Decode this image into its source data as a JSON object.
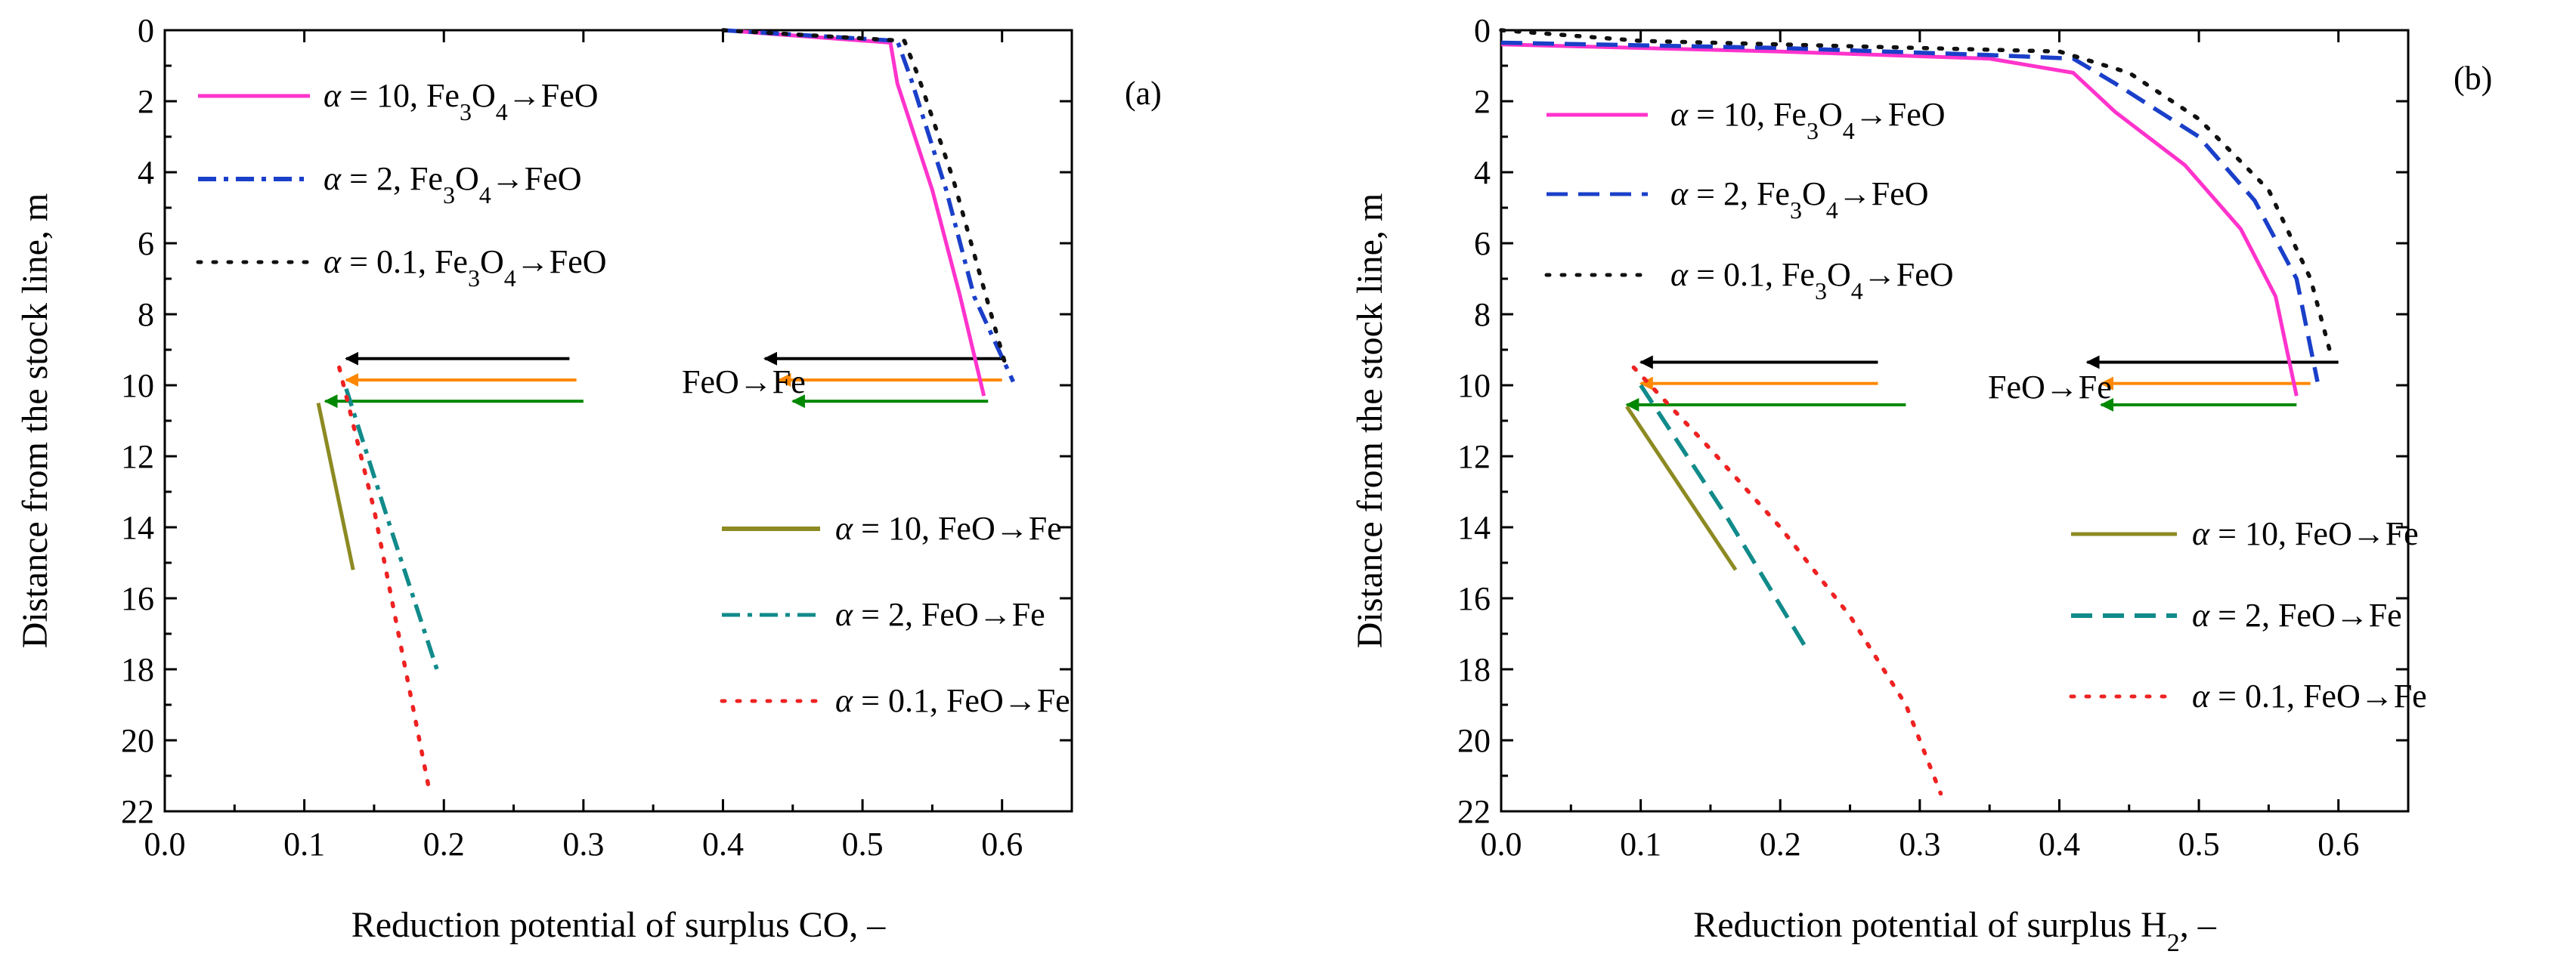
{
  "chart_data": [
    {
      "type": "line",
      "panel_label": "(a)",
      "xlabel": "Reduction potential of surplus CO, –",
      "ylabel": "Distance from the stock line, m",
      "xlim": [
        0.0,
        0.65
      ],
      "ylim": [
        22,
        0
      ],
      "y_inverted": true,
      "xticks": [
        0.0,
        0.1,
        0.2,
        0.3,
        0.4,
        0.5,
        0.6
      ],
      "xtick_labels": [
        "0.0",
        "0.1",
        "0.2",
        "0.3",
        "0.4",
        "0.5",
        "0.6"
      ],
      "yticks": [
        0,
        2,
        4,
        6,
        8,
        10,
        12,
        14,
        16,
        18,
        20,
        22
      ],
      "ytick_labels": [
        "0",
        "2",
        "4",
        "6",
        "8",
        "10",
        "12",
        "14",
        "16",
        "18",
        "20",
        "22"
      ],
      "annotation": "FeO→Fe",
      "series": [
        {
          "name": "α = 10, Fe3O4→FeO",
          "alpha": "10",
          "reaction": "Fe3O4→FeO",
          "color": "#ff33cc",
          "dash": "solid",
          "x": [
            0.4,
            0.52,
            0.525,
            0.55,
            0.57,
            0.587
          ],
          "y": [
            0.0,
            0.35,
            1.5,
            4.5,
            7.5,
            10.3
          ]
        },
        {
          "name": "α = 2, Fe3O4→FeO",
          "alpha": "2",
          "reaction": "Fe3O4→FeO",
          "color": "#1a3fc9",
          "dash": "dashdot",
          "x": [
            0.4,
            0.525,
            0.535,
            0.56,
            0.58,
            0.608
          ],
          "y": [
            0.0,
            0.3,
            1.4,
            4.5,
            7.5,
            9.9
          ]
        },
        {
          "name": "α = 0.1, Fe3O4→FeO",
          "alpha": "0.1",
          "reaction": "Fe3O4→FeO",
          "color": "#111111",
          "dash": "dot",
          "x": [
            0.4,
            0.53,
            0.54,
            0.565,
            0.585,
            0.603
          ],
          "y": [
            0.0,
            0.3,
            1.3,
            4.2,
            7.0,
            9.5
          ]
        },
        {
          "name": "α = 10, FeO→Fe",
          "alpha": "10",
          "reaction": "FeO→Fe",
          "color": "#8c8a22",
          "dash": "solid",
          "x": [
            0.11,
            0.135
          ],
          "y": [
            10.5,
            15.2
          ]
        },
        {
          "name": "α = 2, FeO→Fe",
          "alpha": "2",
          "reaction": "FeO→Fe",
          "color": "#118a8a",
          "dash": "dashdot",
          "x": [
            0.13,
            0.16,
            0.195
          ],
          "y": [
            10.1,
            13.8,
            18.0
          ]
        },
        {
          "name": "α = 0.1, FeO→Fe",
          "alpha": "0.1",
          "reaction": "FeO→Fe",
          "color": "#ee2222",
          "dash": "dot",
          "x": [
            0.125,
            0.15,
            0.17,
            0.19
          ],
          "y": [
            9.5,
            13.5,
            17.5,
            21.5
          ]
        }
      ],
      "arrows": [
        {
          "color": "#000000",
          "y": 9.25,
          "segments": [
            [
              0.29,
              0.13
            ],
            [
              0.6,
              0.43
            ]
          ]
        },
        {
          "color": "#ff8800",
          "y": 9.85,
          "segments": [
            [
              0.295,
              0.13
            ],
            [
              0.6,
              0.44
            ]
          ]
        },
        {
          "color": "#008800",
          "y": 10.45,
          "segments": [
            [
              0.3,
              0.115
            ],
            [
              0.59,
              0.45
            ]
          ]
        }
      ]
    },
    {
      "type": "line",
      "panel_label": "(b)",
      "xlabel_main": "Reduction potential of surplus H",
      "xlabel_sub": "2",
      "xlabel_tail": ", –",
      "ylabel": "Distance from the stock line, m",
      "xlim": [
        0.0,
        0.65
      ],
      "ylim": [
        22,
        0
      ],
      "y_inverted": true,
      "xticks": [
        0.0,
        0.1,
        0.2,
        0.3,
        0.4,
        0.5,
        0.6
      ],
      "xtick_labels": [
        "0.0",
        "0.1",
        "0.2",
        "0.3",
        "0.4",
        "0.5",
        "0.6"
      ],
      "yticks": [
        0,
        2,
        4,
        6,
        8,
        10,
        12,
        14,
        16,
        18,
        20,
        22
      ],
      "ytick_labels": [
        "0",
        "2",
        "4",
        "6",
        "8",
        "10",
        "12",
        "14",
        "16",
        "18",
        "20",
        "22"
      ],
      "annotation": "FeO→Fe",
      "series": [
        {
          "name": "α = 10, Fe3O4→FeO",
          "alpha": "10",
          "reaction": "Fe3O4→FeO",
          "color": "#ff33cc",
          "dash": "solid",
          "x": [
            0.0,
            0.2,
            0.35,
            0.41,
            0.44,
            0.49,
            0.53,
            0.555,
            0.57
          ],
          "y": [
            0.4,
            0.6,
            0.8,
            1.2,
            2.3,
            3.8,
            5.6,
            7.5,
            10.3
          ]
        },
        {
          "name": "α = 2, Fe3O4→FeO",
          "alpha": "2",
          "reaction": "Fe3O4→FeO",
          "color": "#1a3fc9",
          "dash": "dash",
          "x": [
            0.0,
            0.2,
            0.35,
            0.41,
            0.44,
            0.5,
            0.54,
            0.57,
            0.585
          ],
          "y": [
            0.35,
            0.5,
            0.7,
            0.8,
            1.5,
            3.0,
            4.8,
            7.0,
            9.9
          ]
        },
        {
          "name": "α = 0.1, Fe3O4→FeO",
          "alpha": "0.1",
          "reaction": "Fe3O4→FeO",
          "color": "#111111",
          "dash": "dot",
          "x": [
            0.0,
            0.1,
            0.3,
            0.4,
            0.45,
            0.5,
            0.55,
            0.58,
            0.595
          ],
          "y": [
            0.0,
            0.3,
            0.5,
            0.6,
            1.2,
            2.5,
            4.5,
            7.0,
            9.2
          ]
        },
        {
          "name": "α = 10, FeO→Fe",
          "alpha": "10",
          "reaction": "FeO→Fe",
          "color": "#8c8a22",
          "dash": "solid",
          "x": [
            0.09,
            0.168
          ],
          "y": [
            10.6,
            15.2
          ]
        },
        {
          "name": "α = 2, FeO→Fe",
          "alpha": "2",
          "reaction": "FeO→Fe",
          "color": "#118a8a",
          "dash": "dash",
          "x": [
            0.1,
            0.16,
            0.22
          ],
          "y": [
            10.0,
            13.6,
            17.5
          ]
        },
        {
          "name": "α = 0.1, FeO→Fe",
          "alpha": "0.1",
          "reaction": "FeO→Fe",
          "color": "#ee2222",
          "dash": "dot",
          "x": [
            0.095,
            0.15,
            0.2,
            0.25,
            0.29,
            0.315
          ],
          "y": [
            9.5,
            11.8,
            14.0,
            16.5,
            19.0,
            21.5
          ]
        }
      ],
      "arrows": [
        {
          "color": "#000000",
          "y": 9.35,
          "segments": [
            [
              0.27,
              0.1
            ],
            [
              0.6,
              0.42
            ]
          ]
        },
        {
          "color": "#ff8800",
          "y": 9.95,
          "segments": [
            [
              0.27,
              0.1
            ],
            [
              0.58,
              0.43
            ]
          ]
        },
        {
          "color": "#008800",
          "y": 10.55,
          "segments": [
            [
              0.29,
              0.09
            ],
            [
              0.57,
              0.43
            ]
          ]
        }
      ]
    }
  ]
}
